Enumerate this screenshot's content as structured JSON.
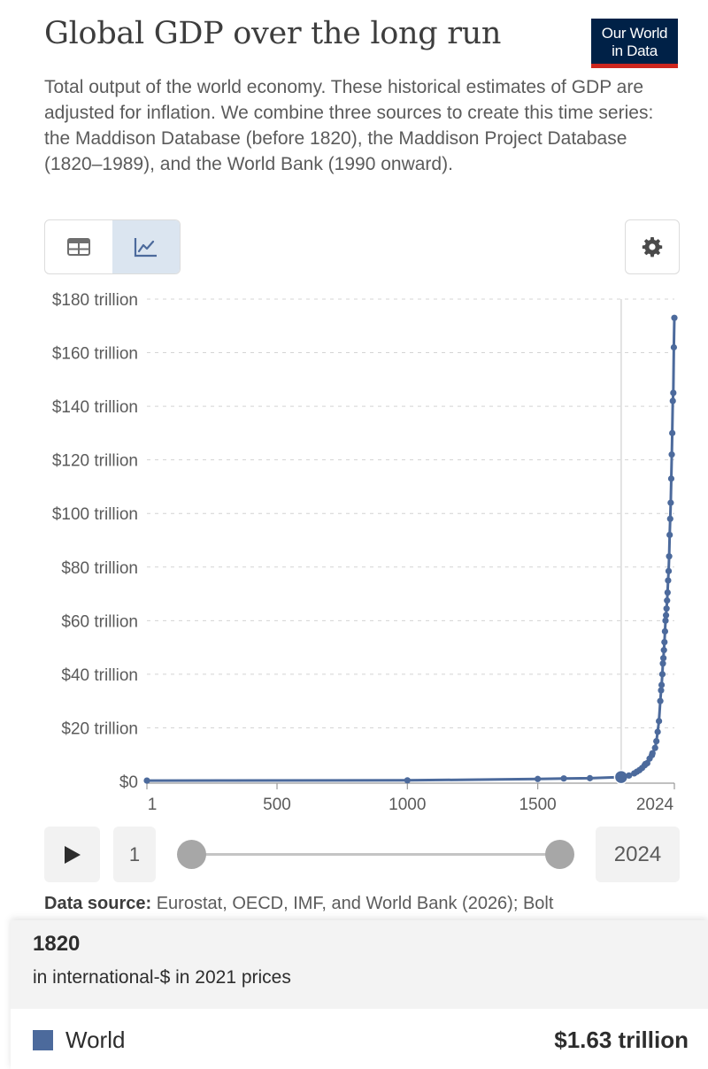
{
  "header": {
    "title": "Global GDP over the long run",
    "logo_text_line1": "Our World",
    "logo_text_line2": "in Data",
    "subtitle": "Total output of the world economy. These historical estimates of GDP are adjusted for inflation. We combine three sources to create this time series: the Maddison Database (before 1820), the Maddison Project Database (1820–1989), and the World Bank (1990 onward)."
  },
  "controls": {
    "table_icon": "table-icon",
    "chart_icon": "line-chart-icon",
    "settings_icon": "gear-icon",
    "active_view": "chart"
  },
  "timeline": {
    "play_icon": "play-icon",
    "start_label": "1",
    "end_label": "2024"
  },
  "source": {
    "label": "Data source:",
    "text": "Eurostat, OECD, IMF, and World Bank (2026); Bolt"
  },
  "tooltip": {
    "year": "1820",
    "unit": "in international-$ in 2021 prices",
    "entity": "World",
    "value": "$1.63 trillion",
    "color": "#4c6a9c"
  },
  "chart_data": {
    "type": "line",
    "x_domain": [
      1,
      2024
    ],
    "ylim": [
      0,
      180
    ],
    "y_ticks": [
      {
        "value": 0,
        "label": "$0"
      },
      {
        "value": 20,
        "label": "$20 trillion"
      },
      {
        "value": 40,
        "label": "$40 trillion"
      },
      {
        "value": 60,
        "label": "$60 trillion"
      },
      {
        "value": 80,
        "label": "$80 trillion"
      },
      {
        "value": 100,
        "label": "$100 trillion"
      },
      {
        "value": 120,
        "label": "$120 trillion"
      },
      {
        "value": 140,
        "label": "$140 trillion"
      },
      {
        "value": 160,
        "label": "$160 trillion"
      },
      {
        "value": 180,
        "label": "$180 trillion"
      }
    ],
    "x_ticks": [
      {
        "value": 1,
        "label": "1"
      },
      {
        "value": 500,
        "label": "500"
      },
      {
        "value": 1000,
        "label": "1000"
      },
      {
        "value": 1500,
        "label": "1500"
      },
      {
        "value": 2024,
        "label": "2024"
      }
    ],
    "highlight_x": 1820,
    "series": [
      {
        "name": "World",
        "color": "#4c6a9c",
        "x": [
          1,
          1000,
          1500,
          1600,
          1700,
          1820,
          1850,
          1870,
          1880,
          1890,
          1900,
          1910,
          1913,
          1920,
          1929,
          1938,
          1940,
          1950,
          1955,
          1960,
          1965,
          1970,
          1973,
          1975,
          1978,
          1980,
          1982,
          1984,
          1986,
          1988,
          1990,
          1992,
          1994,
          1996,
          1998,
          2000,
          2002,
          2004,
          2006,
          2008,
          2010,
          2012,
          2014,
          2016,
          2018,
          2020,
          2022,
          2024
        ],
        "y": [
          0.3,
          0.4,
          0.9,
          1.1,
          1.2,
          1.63,
          2.2,
          3.0,
          3.6,
          4.2,
          5.0,
          6.0,
          6.5,
          6.8,
          8.5,
          9.8,
          10.5,
          12.5,
          15.0,
          18.5,
          22.5,
          30.0,
          34.0,
          36.0,
          40.0,
          44.0,
          46.0,
          49.0,
          52.0,
          56.0,
          60.0,
          62.0,
          64.5,
          67.5,
          70.5,
          75.0,
          78.5,
          84.0,
          92.0,
          98.0,
          104.0,
          113.0,
          122.0,
          130.0,
          142.0,
          145.0,
          162.0,
          173.0
        ]
      }
    ]
  }
}
